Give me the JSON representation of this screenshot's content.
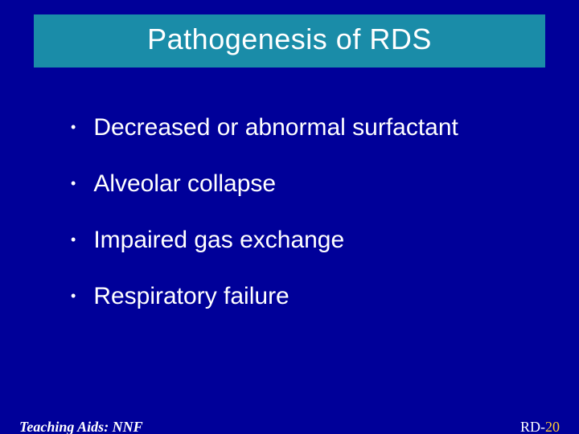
{
  "slide": {
    "background_color": "#000099",
    "title_bar_color": "#1a8ca8",
    "text_color": "#ffffff",
    "accent_color": "#ffcc33",
    "title": "Pathogenesis of RDS",
    "title_fontsize": 36,
    "bullet_fontsize": 30,
    "bullets": [
      "Decreased or abnormal surfactant",
      "Alveolar collapse",
      "Impaired gas exchange",
      "Respiratory failure"
    ],
    "footer_left": "Teaching Aids: NNF",
    "footer_right_prefix": "RD-",
    "footer_right_page": "20",
    "footer_fontsize": 18
  }
}
